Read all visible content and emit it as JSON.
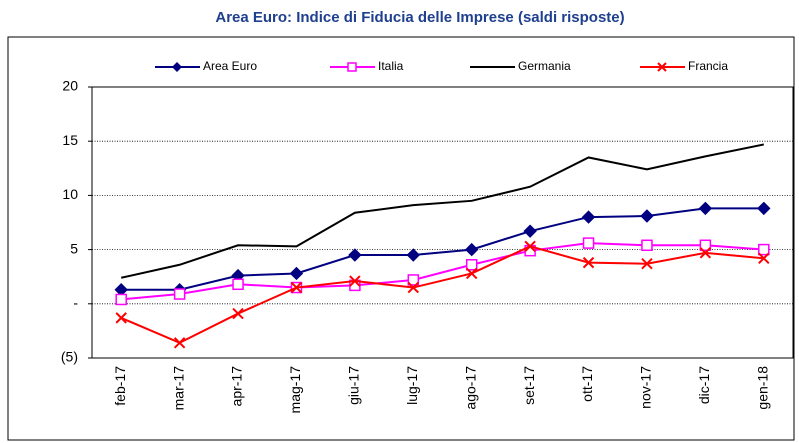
{
  "chart_data": {
    "type": "line",
    "title": "Area Euro: Indice di Fiducia delle Imprese (saldi risposte)",
    "categories": [
      "feb-17",
      "mar-17",
      "apr-17",
      "mag-17",
      "giu-17",
      "lug-17",
      "ago-17",
      "set-17",
      "ott-17",
      "nov-17",
      "dic-17",
      "gen-18"
    ],
    "series": [
      {
        "name": "Area Euro",
        "color": "#000080",
        "marker": "diamond",
        "values": [
          1.3,
          1.3,
          2.6,
          2.8,
          4.5,
          4.5,
          5.0,
          6.7,
          8.0,
          8.1,
          8.8,
          8.8
        ]
      },
      {
        "name": "Italia",
        "color": "#ff00ff",
        "marker": "square",
        "values": [
          0.4,
          0.9,
          1.8,
          1.5,
          1.7,
          2.2,
          3.6,
          4.9,
          5.6,
          5.4,
          5.4,
          5.0
        ]
      },
      {
        "name": "Germania",
        "color": "#000000",
        "marker": "none",
        "values": [
          2.4,
          3.6,
          5.4,
          5.3,
          8.4,
          9.1,
          9.5,
          10.8,
          13.5,
          12.4,
          13.6,
          14.7
        ]
      },
      {
        "name": "Francia",
        "color": "#ff0000",
        "marker": "x",
        "values": [
          -1.3,
          -3.6,
          -0.9,
          1.5,
          2.1,
          1.5,
          2.8,
          5.3,
          3.8,
          3.7,
          4.7,
          4.2
        ]
      }
    ],
    "ylim": [
      -5,
      20
    ],
    "yticks": [
      {
        "value": -5,
        "label": "(5)"
      },
      {
        "value": 0,
        "label": "-"
      },
      5,
      10,
      15,
      20
    ],
    "grid": true,
    "legend": "top"
  }
}
